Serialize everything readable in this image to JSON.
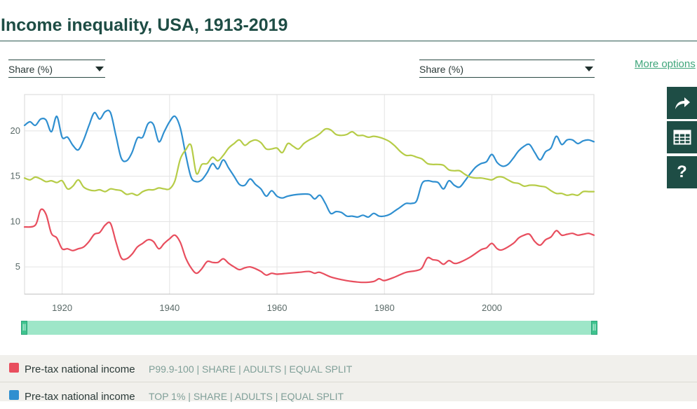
{
  "title": "Income inequality, USA, 1913-2019",
  "controls": {
    "left_select": "Share (%)",
    "right_select": "Share (%)",
    "more_options": "More options"
  },
  "side_buttons": [
    "share-arrow-icon",
    "table-icon",
    "help-icon"
  ],
  "colors": {
    "red": "#e84e5e",
    "blue": "#2f8fd0",
    "green": "#b6cc47",
    "slider": "#9ee6c8",
    "handle": "#3fc38e",
    "header": "#1e4d45"
  },
  "legend": [
    {
      "name": "Pre-tax national income",
      "detail": "P99.9-100 | SHARE | ADULTS | EQUAL SPLIT",
      "color": "#e84e5e"
    },
    {
      "name": "Pre-tax national income",
      "detail": "TOP 1% | SHARE | ADULTS | EQUAL SPLIT",
      "color": "#2f8fd0"
    }
  ],
  "chart_data": {
    "type": "line",
    "xlim": [
      1913,
      2019
    ],
    "ylim": [
      2,
      24
    ],
    "x_ticks": [
      1920,
      1940,
      1960,
      1980,
      2000
    ],
    "y_ticks": [
      5,
      10,
      15,
      20
    ],
    "grid": true,
    "series": [
      {
        "name": "Pre-tax national income P99.9-100 | SHARE | ADULTS | EQUAL SPLIT",
        "color": "#e84e5e",
        "points": [
          [
            1913,
            9.4
          ],
          [
            1915,
            9.6
          ],
          [
            1916,
            11.3
          ],
          [
            1917,
            10.8
          ],
          [
            1918,
            8.7
          ],
          [
            1919,
            8.2
          ],
          [
            1920,
            7.0
          ],
          [
            1921,
            7.0
          ],
          [
            1922,
            6.8
          ],
          [
            1923,
            7.0
          ],
          [
            1924,
            7.2
          ],
          [
            1925,
            7.8
          ],
          [
            1926,
            8.6
          ],
          [
            1927,
            8.8
          ],
          [
            1928,
            9.6
          ],
          [
            1929,
            9.8
          ],
          [
            1930,
            7.8
          ],
          [
            1931,
            6.0
          ],
          [
            1932,
            5.9
          ],
          [
            1933,
            6.4
          ],
          [
            1934,
            7.2
          ],
          [
            1935,
            7.6
          ],
          [
            1936,
            8.0
          ],
          [
            1937,
            7.8
          ],
          [
            1938,
            7.0
          ],
          [
            1939,
            7.6
          ],
          [
            1940,
            8.1
          ],
          [
            1941,
            8.5
          ],
          [
            1942,
            7.7
          ],
          [
            1943,
            6.0
          ],
          [
            1944,
            4.9
          ],
          [
            1945,
            4.3
          ],
          [
            1946,
            4.8
          ],
          [
            1947,
            5.6
          ],
          [
            1948,
            5.5
          ],
          [
            1949,
            5.5
          ],
          [
            1950,
            5.9
          ],
          [
            1951,
            5.4
          ],
          [
            1952,
            5.0
          ],
          [
            1953,
            4.7
          ],
          [
            1954,
            4.9
          ],
          [
            1955,
            5.0
          ],
          [
            1956,
            4.8
          ],
          [
            1957,
            4.5
          ],
          [
            1958,
            4.1
          ],
          [
            1959,
            4.3
          ],
          [
            1960,
            4.2
          ],
          [
            1962,
            4.3
          ],
          [
            1964,
            4.4
          ],
          [
            1966,
            4.5
          ],
          [
            1967,
            4.3
          ],
          [
            1968,
            4.4
          ],
          [
            1970,
            3.9
          ],
          [
            1972,
            3.6
          ],
          [
            1974,
            3.4
          ],
          [
            1976,
            3.3
          ],
          [
            1978,
            3.4
          ],
          [
            1979,
            3.7
          ],
          [
            1980,
            3.5
          ],
          [
            1982,
            3.9
          ],
          [
            1984,
            4.4
          ],
          [
            1986,
            4.6
          ],
          [
            1987,
            4.9
          ],
          [
            1988,
            6.0
          ],
          [
            1989,
            5.8
          ],
          [
            1990,
            5.7
          ],
          [
            1991,
            5.3
          ],
          [
            1992,
            5.7
          ],
          [
            1993,
            5.4
          ],
          [
            1994,
            5.5
          ],
          [
            1996,
            6.1
          ],
          [
            1998,
            6.9
          ],
          [
            1999,
            7.1
          ],
          [
            2000,
            7.6
          ],
          [
            2001,
            7.0
          ],
          [
            2002,
            6.9
          ],
          [
            2004,
            7.6
          ],
          [
            2005,
            8.2
          ],
          [
            2006,
            8.5
          ],
          [
            2007,
            8.6
          ],
          [
            2008,
            7.8
          ],
          [
            2009,
            7.4
          ],
          [
            2010,
            8.0
          ],
          [
            2011,
            8.3
          ],
          [
            2012,
            9.0
          ],
          [
            2013,
            8.5
          ],
          [
            2014,
            8.6
          ],
          [
            2015,
            8.7
          ],
          [
            2016,
            8.5
          ],
          [
            2017,
            8.6
          ],
          [
            2018,
            8.7
          ],
          [
            2019,
            8.5
          ]
        ]
      },
      {
        "name": "Pre-tax national income TOP 1% | SHARE | ADULTS | EQUAL SPLIT",
        "color": "#2f8fd0",
        "points": [
          [
            1913,
            20.6
          ],
          [
            1914,
            21.0
          ],
          [
            1915,
            20.6
          ],
          [
            1916,
            21.3
          ],
          [
            1917,
            21.2
          ],
          [
            1918,
            19.9
          ],
          [
            1919,
            21.6
          ],
          [
            1920,
            19.3
          ],
          [
            1921,
            19.3
          ],
          [
            1922,
            18.4
          ],
          [
            1923,
            17.9
          ],
          [
            1924,
            19.0
          ],
          [
            1925,
            20.6
          ],
          [
            1926,
            22.0
          ],
          [
            1927,
            21.3
          ],
          [
            1928,
            22.1
          ],
          [
            1929,
            22.0
          ],
          [
            1930,
            19.5
          ],
          [
            1931,
            17.0
          ],
          [
            1932,
            16.7
          ],
          [
            1933,
            17.6
          ],
          [
            1934,
            19.2
          ],
          [
            1935,
            19.3
          ],
          [
            1936,
            20.8
          ],
          [
            1937,
            20.7
          ],
          [
            1938,
            18.8
          ],
          [
            1939,
            19.9
          ],
          [
            1940,
            21.0
          ],
          [
            1941,
            21.6
          ],
          [
            1942,
            20.3
          ],
          [
            1943,
            17.4
          ],
          [
            1944,
            14.9
          ],
          [
            1945,
            14.4
          ],
          [
            1946,
            14.6
          ],
          [
            1947,
            15.4
          ],
          [
            1948,
            16.4
          ],
          [
            1949,
            15.8
          ],
          [
            1950,
            16.8
          ],
          [
            1951,
            15.9
          ],
          [
            1952,
            15.0
          ],
          [
            1953,
            14.1
          ],
          [
            1954,
            14.0
          ],
          [
            1955,
            14.7
          ],
          [
            1956,
            14.1
          ],
          [
            1957,
            13.6
          ],
          [
            1958,
            12.8
          ],
          [
            1959,
            13.4
          ],
          [
            1960,
            12.8
          ],
          [
            1961,
            12.6
          ],
          [
            1962,
            12.8
          ],
          [
            1964,
            13.0
          ],
          [
            1966,
            13.0
          ],
          [
            1967,
            12.5
          ],
          [
            1968,
            12.9
          ],
          [
            1969,
            12.0
          ],
          [
            1970,
            10.9
          ],
          [
            1971,
            11.1
          ],
          [
            1972,
            11.0
          ],
          [
            1973,
            10.6
          ],
          [
            1974,
            10.6
          ],
          [
            1975,
            10.5
          ],
          [
            1976,
            10.7
          ],
          [
            1977,
            10.5
          ],
          [
            1978,
            10.9
          ],
          [
            1979,
            10.6
          ],
          [
            1980,
            10.6
          ],
          [
            1981,
            10.8
          ],
          [
            1982,
            11.2
          ],
          [
            1983,
            11.6
          ],
          [
            1984,
            12.0
          ],
          [
            1985,
            12.0
          ],
          [
            1986,
            12.3
          ],
          [
            1987,
            14.2
          ],
          [
            1988,
            14.5
          ],
          [
            1989,
            14.4
          ],
          [
            1990,
            14.3
          ],
          [
            1991,
            13.6
          ],
          [
            1992,
            14.5
          ],
          [
            1993,
            14.0
          ],
          [
            1994,
            13.8
          ],
          [
            1995,
            14.5
          ],
          [
            1996,
            15.3
          ],
          [
            1997,
            16.0
          ],
          [
            1998,
            16.4
          ],
          [
            1999,
            16.6
          ],
          [
            2000,
            17.4
          ],
          [
            2001,
            16.5
          ],
          [
            2002,
            16.1
          ],
          [
            2003,
            16.3
          ],
          [
            2004,
            17.0
          ],
          [
            2005,
            17.8
          ],
          [
            2006,
            18.3
          ],
          [
            2007,
            18.5
          ],
          [
            2008,
            17.6
          ],
          [
            2009,
            16.8
          ],
          [
            2010,
            17.7
          ],
          [
            2011,
            18.1
          ],
          [
            2012,
            19.4
          ],
          [
            2013,
            18.5
          ],
          [
            2014,
            19.0
          ],
          [
            2015,
            19.0
          ],
          [
            2016,
            18.6
          ],
          [
            2017,
            18.9
          ],
          [
            2018,
            19.0
          ],
          [
            2019,
            18.8
          ]
        ]
      },
      {
        "name": "",
        "color": "#b6cc47",
        "points": [
          [
            1913,
            14.8
          ],
          [
            1914,
            14.6
          ],
          [
            1915,
            14.9
          ],
          [
            1916,
            14.7
          ],
          [
            1917,
            14.4
          ],
          [
            1918,
            14.5
          ],
          [
            1919,
            14.3
          ],
          [
            1920,
            14.5
          ],
          [
            1921,
            13.6
          ],
          [
            1922,
            13.9
          ],
          [
            1923,
            14.6
          ],
          [
            1924,
            13.8
          ],
          [
            1925,
            13.5
          ],
          [
            1926,
            13.4
          ],
          [
            1927,
            13.5
          ],
          [
            1928,
            13.3
          ],
          [
            1929,
            13.6
          ],
          [
            1930,
            13.5
          ],
          [
            1931,
            13.4
          ],
          [
            1932,
            13.0
          ],
          [
            1933,
            13.1
          ],
          [
            1934,
            12.9
          ],
          [
            1935,
            13.3
          ],
          [
            1936,
            13.5
          ],
          [
            1937,
            13.5
          ],
          [
            1938,
            13.7
          ],
          [
            1939,
            13.6
          ],
          [
            1940,
            13.6
          ],
          [
            1941,
            14.5
          ],
          [
            1942,
            16.9
          ],
          [
            1943,
            17.9
          ],
          [
            1944,
            18.4
          ],
          [
            1945,
            15.3
          ],
          [
            1946,
            16.3
          ],
          [
            1947,
            16.4
          ],
          [
            1948,
            17.1
          ],
          [
            1949,
            16.7
          ],
          [
            1950,
            17.3
          ],
          [
            1951,
            18.1
          ],
          [
            1952,
            18.6
          ],
          [
            1953,
            19.0
          ],
          [
            1954,
            18.4
          ],
          [
            1955,
            18.8
          ],
          [
            1956,
            19.0
          ],
          [
            1957,
            18.7
          ],
          [
            1958,
            18.0
          ],
          [
            1959,
            18.0
          ],
          [
            1960,
            18.1
          ],
          [
            1961,
            17.6
          ],
          [
            1962,
            18.6
          ],
          [
            1963,
            18.3
          ],
          [
            1964,
            18.0
          ],
          [
            1965,
            18.6
          ],
          [
            1966,
            19.0
          ],
          [
            1967,
            19.3
          ],
          [
            1968,
            19.7
          ],
          [
            1969,
            20.2
          ],
          [
            1970,
            20.1
          ],
          [
            1971,
            19.6
          ],
          [
            1972,
            19.5
          ],
          [
            1973,
            19.6
          ],
          [
            1974,
            19.9
          ],
          [
            1975,
            19.5
          ],
          [
            1976,
            19.5
          ],
          [
            1977,
            19.3
          ],
          [
            1978,
            19.4
          ],
          [
            1979,
            19.3
          ],
          [
            1980,
            19.1
          ],
          [
            1981,
            18.8
          ],
          [
            1982,
            18.3
          ],
          [
            1983,
            17.7
          ],
          [
            1984,
            17.3
          ],
          [
            1985,
            17.3
          ],
          [
            1986,
            17.1
          ],
          [
            1987,
            16.9
          ],
          [
            1988,
            16.4
          ],
          [
            1989,
            16.3
          ],
          [
            1990,
            16.3
          ],
          [
            1991,
            16.2
          ],
          [
            1992,
            15.7
          ],
          [
            1993,
            15.6
          ],
          [
            1994,
            15.6
          ],
          [
            1995,
            15.2
          ],
          [
            1996,
            14.9
          ],
          [
            1997,
            14.8
          ],
          [
            1998,
            14.8
          ],
          [
            1999,
            14.7
          ],
          [
            2000,
            14.6
          ],
          [
            2001,
            14.9
          ],
          [
            2002,
            14.9
          ],
          [
            2003,
            14.6
          ],
          [
            2004,
            14.3
          ],
          [
            2005,
            14.2
          ],
          [
            2006,
            13.9
          ],
          [
            2007,
            14.0
          ],
          [
            2008,
            14.0
          ],
          [
            2009,
            13.9
          ],
          [
            2010,
            13.8
          ],
          [
            2011,
            13.4
          ],
          [
            2012,
            13.1
          ],
          [
            2013,
            13.1
          ],
          [
            2014,
            12.9
          ],
          [
            2015,
            13.0
          ],
          [
            2016,
            12.9
          ],
          [
            2017,
            13.3
          ],
          [
            2018,
            13.3
          ],
          [
            2019,
            13.3
          ]
        ]
      }
    ]
  }
}
